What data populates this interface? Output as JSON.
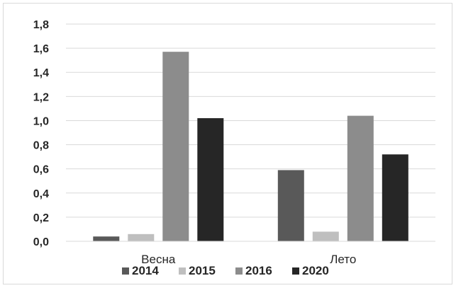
{
  "chart_data": {
    "type": "bar",
    "categories": [
      "Весна",
      "Лето"
    ],
    "series": [
      {
        "name": "2014",
        "values": [
          0.04,
          0.59
        ],
        "color": "#595959"
      },
      {
        "name": "2015",
        "values": [
          0.06,
          0.08
        ],
        "color": "#bfbfbf"
      },
      {
        "name": "2016",
        "values": [
          1.57,
          1.04
        ],
        "color": "#8c8c8c"
      },
      {
        "name": "2020",
        "values": [
          1.02,
          0.72
        ],
        "color": "#262626"
      }
    ],
    "yticks": [
      "0,0",
      "0,2",
      "0,4",
      "0,6",
      "0,8",
      "1,0",
      "1,2",
      "1,4",
      "1,6",
      "1,8"
    ],
    "ylim": [
      0,
      1.8
    ],
    "grid": true,
    "legend": "bottom"
  }
}
